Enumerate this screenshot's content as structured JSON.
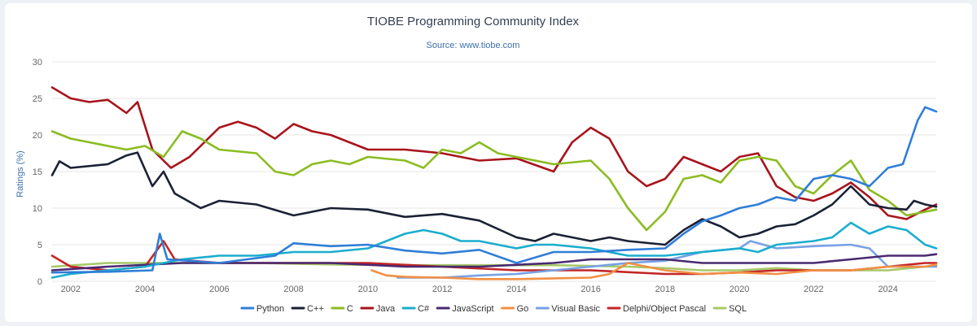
{
  "chart_data": {
    "type": "line",
    "title": "TIOBE Programming Community Index",
    "subtitle": "Source: www.tiobe.com",
    "xlabel": "",
    "ylabel": "Ratings (%)",
    "xlim": [
      2001.5,
      2025.3
    ],
    "ylim": [
      0,
      30
    ],
    "x_ticks": [
      "2002",
      "2004",
      "2006",
      "2008",
      "2010",
      "2012",
      "2014",
      "2016",
      "2018",
      "2020",
      "2022",
      "2024"
    ],
    "y_ticks": [
      "0",
      "5",
      "10",
      "15",
      "20",
      "25",
      "30"
    ],
    "grid": true,
    "legend_position": "bottom",
    "series": [
      {
        "name": "Python",
        "color": "#2f7ed8",
        "points": [
          [
            2001.5,
            1.2
          ],
          [
            2003,
            1.3
          ],
          [
            2004.2,
            1.5
          ],
          [
            2004.4,
            6.5
          ],
          [
            2004.6,
            3.0
          ],
          [
            2006,
            2.5
          ],
          [
            2007.5,
            3.5
          ],
          [
            2008,
            5.2
          ],
          [
            2009,
            4.8
          ],
          [
            2010,
            5.0
          ],
          [
            2011,
            4.2
          ],
          [
            2012,
            3.8
          ],
          [
            2013,
            4.3
          ],
          [
            2014,
            2.5
          ],
          [
            2015,
            4.0
          ],
          [
            2016,
            4.0
          ],
          [
            2017,
            4.3
          ],
          [
            2018,
            4.5
          ],
          [
            2018.5,
            6.5
          ],
          [
            2019,
            8.2
          ],
          [
            2019.5,
            9.0
          ],
          [
            2020,
            10.0
          ],
          [
            2020.5,
            10.5
          ],
          [
            2021,
            11.5
          ],
          [
            2021.5,
            11.0
          ],
          [
            2022,
            14.0
          ],
          [
            2022.5,
            14.5
          ],
          [
            2023,
            14.0
          ],
          [
            2023.5,
            13.0
          ],
          [
            2024,
            15.5
          ],
          [
            2024.4,
            16.0
          ],
          [
            2024.8,
            22.0
          ],
          [
            2025,
            23.8
          ],
          [
            2025.3,
            23.2
          ]
        ]
      },
      {
        "name": "C++",
        "color": "#1b2135",
        "points": [
          [
            2001.5,
            14.5
          ],
          [
            2001.7,
            16.4
          ],
          [
            2002,
            15.5
          ],
          [
            2003,
            16.0
          ],
          [
            2003.5,
            17.2
          ],
          [
            2003.8,
            17.6
          ],
          [
            2004.2,
            13.0
          ],
          [
            2004.5,
            15.0
          ],
          [
            2004.8,
            12.0
          ],
          [
            2005.5,
            10.0
          ],
          [
            2006,
            11.0
          ],
          [
            2007,
            10.5
          ],
          [
            2008,
            9.0
          ],
          [
            2009,
            10.0
          ],
          [
            2010,
            9.8
          ],
          [
            2011,
            8.8
          ],
          [
            2012,
            9.2
          ],
          [
            2013,
            8.3
          ],
          [
            2014,
            6.0
          ],
          [
            2014.5,
            5.5
          ],
          [
            2015,
            6.5
          ],
          [
            2016,
            5.5
          ],
          [
            2016.5,
            6.0
          ],
          [
            2017,
            5.5
          ],
          [
            2018,
            5.0
          ],
          [
            2018.5,
            7.0
          ],
          [
            2019,
            8.5
          ],
          [
            2019.5,
            7.5
          ],
          [
            2020,
            6.0
          ],
          [
            2020.5,
            6.5
          ],
          [
            2021,
            7.5
          ],
          [
            2021.5,
            7.8
          ],
          [
            2022,
            9.0
          ],
          [
            2022.5,
            10.5
          ],
          [
            2023,
            13.0
          ],
          [
            2023.5,
            10.5
          ],
          [
            2024,
            10.0
          ],
          [
            2024.5,
            9.8
          ],
          [
            2024.7,
            11.0
          ],
          [
            2025,
            10.5
          ],
          [
            2025.3,
            10.2
          ]
        ]
      },
      {
        "name": "C",
        "color": "#8bbc21",
        "points": [
          [
            2001.5,
            20.5
          ],
          [
            2002,
            19.5
          ],
          [
            2002.5,
            19.0
          ],
          [
            2003,
            18.5
          ],
          [
            2003.5,
            18.0
          ],
          [
            2004,
            18.5
          ],
          [
            2004.5,
            17.0
          ],
          [
            2005,
            20.5
          ],
          [
            2005.5,
            19.5
          ],
          [
            2006,
            18.0
          ],
          [
            2007,
            17.5
          ],
          [
            2007.5,
            15.0
          ],
          [
            2008,
            14.5
          ],
          [
            2008.5,
            16.0
          ],
          [
            2009,
            16.5
          ],
          [
            2009.5,
            16.0
          ],
          [
            2010,
            17.0
          ],
          [
            2011,
            16.5
          ],
          [
            2011.5,
            15.5
          ],
          [
            2012,
            18.0
          ],
          [
            2012.5,
            17.5
          ],
          [
            2013,
            19.0
          ],
          [
            2013.5,
            17.5
          ],
          [
            2014,
            17.0
          ],
          [
            2015,
            16.0
          ],
          [
            2016,
            16.5
          ],
          [
            2016.5,
            14.0
          ],
          [
            2017,
            10.0
          ],
          [
            2017.5,
            7.0
          ],
          [
            2018,
            9.5
          ],
          [
            2018.5,
            14.0
          ],
          [
            2019,
            14.5
          ],
          [
            2019.5,
            13.5
          ],
          [
            2020,
            16.5
          ],
          [
            2020.5,
            17.0
          ],
          [
            2021,
            16.5
          ],
          [
            2021.5,
            13.0
          ],
          [
            2022,
            12.0
          ],
          [
            2022.5,
            14.5
          ],
          [
            2023,
            16.5
          ],
          [
            2023.5,
            12.5
          ],
          [
            2024,
            11.0
          ],
          [
            2024.5,
            9.0
          ],
          [
            2025,
            9.5
          ],
          [
            2025.3,
            9.8
          ]
        ]
      },
      {
        "name": "Java",
        "color": "#a8141c",
        "points": [
          [
            2001.5,
            26.5
          ],
          [
            2002,
            25.0
          ],
          [
            2002.5,
            24.5
          ],
          [
            2003,
            24.8
          ],
          [
            2003.5,
            23.0
          ],
          [
            2003.8,
            24.5
          ],
          [
            2004.2,
            18.0
          ],
          [
            2004.7,
            15.5
          ],
          [
            2005.2,
            17.0
          ],
          [
            2006,
            21.0
          ],
          [
            2006.5,
            21.8
          ],
          [
            2007,
            21.0
          ],
          [
            2007.5,
            19.5
          ],
          [
            2008,
            21.5
          ],
          [
            2008.5,
            20.5
          ],
          [
            2009,
            20.0
          ],
          [
            2010,
            18.0
          ],
          [
            2011,
            18.0
          ],
          [
            2012,
            17.5
          ],
          [
            2013,
            16.5
          ],
          [
            2014,
            16.8
          ],
          [
            2015,
            15.0
          ],
          [
            2015.5,
            19.0
          ],
          [
            2016,
            21.0
          ],
          [
            2016.5,
            19.5
          ],
          [
            2017,
            15.0
          ],
          [
            2017.5,
            13.0
          ],
          [
            2018,
            14.0
          ],
          [
            2018.5,
            17.0
          ],
          [
            2019,
            16.0
          ],
          [
            2019.5,
            15.0
          ],
          [
            2020,
            17.0
          ],
          [
            2020.5,
            17.5
          ],
          [
            2021,
            13.0
          ],
          [
            2021.5,
            11.5
          ],
          [
            2022,
            11.0
          ],
          [
            2022.5,
            12.0
          ],
          [
            2023,
            13.5
          ],
          [
            2023.5,
            11.5
          ],
          [
            2024,
            9.0
          ],
          [
            2024.5,
            8.5
          ],
          [
            2025,
            9.8
          ],
          [
            2025.3,
            10.5
          ]
        ]
      },
      {
        "name": "C#",
        "color": "#1aadce",
        "points": [
          [
            2001.5,
            0.5
          ],
          [
            2002,
            1.0
          ],
          [
            2003,
            1.5
          ],
          [
            2004,
            2.0
          ],
          [
            2005,
            3.0
          ],
          [
            2006,
            3.5
          ],
          [
            2007,
            3.5
          ],
          [
            2008,
            4.0
          ],
          [
            2009,
            4.0
          ],
          [
            2010,
            4.5
          ],
          [
            2010.5,
            5.5
          ],
          [
            2011,
            6.5
          ],
          [
            2011.5,
            7.0
          ],
          [
            2012,
            6.5
          ],
          [
            2012.5,
            5.5
          ],
          [
            2013,
            5.5
          ],
          [
            2014,
            4.5
          ],
          [
            2014.5,
            5.0
          ],
          [
            2015,
            5.0
          ],
          [
            2016,
            4.5
          ],
          [
            2017,
            3.5
          ],
          [
            2018,
            3.5
          ],
          [
            2019,
            4.0
          ],
          [
            2020,
            4.5
          ],
          [
            2020.5,
            4.0
          ],
          [
            2021,
            5.0
          ],
          [
            2022,
            5.5
          ],
          [
            2022.5,
            6.0
          ],
          [
            2023,
            8.0
          ],
          [
            2023.5,
            6.5
          ],
          [
            2024,
            7.5
          ],
          [
            2024.5,
            7.0
          ],
          [
            2025,
            5.0
          ],
          [
            2025.3,
            4.5
          ]
        ]
      },
      {
        "name": "JavaScript",
        "color": "#492970",
        "points": [
          [
            2001.5,
            1.5
          ],
          [
            2003,
            2.0
          ],
          [
            2005,
            2.5
          ],
          [
            2007,
            2.5
          ],
          [
            2009,
            2.5
          ],
          [
            2011,
            2.0
          ],
          [
            2013,
            2.0
          ],
          [
            2015,
            2.5
          ],
          [
            2016,
            3.0
          ],
          [
            2017,
            3.0
          ],
          [
            2018,
            3.0
          ],
          [
            2019,
            2.5
          ],
          [
            2020,
            2.5
          ],
          [
            2021,
            2.5
          ],
          [
            2022,
            2.5
          ],
          [
            2023,
            3.0
          ],
          [
            2024,
            3.5
          ],
          [
            2025,
            3.5
          ],
          [
            2025.3,
            3.7
          ]
        ]
      },
      {
        "name": "Go",
        "color": "#f28f43",
        "points": [
          [
            2010.1,
            1.5
          ],
          [
            2010.5,
            0.8
          ],
          [
            2011,
            0.6
          ],
          [
            2012,
            0.5
          ],
          [
            2013,
            0.3
          ],
          [
            2014,
            0.3
          ],
          [
            2015,
            0.4
          ],
          [
            2016,
            0.5
          ],
          [
            2016.5,
            1.0
          ],
          [
            2017,
            2.5
          ],
          [
            2018,
            1.5
          ],
          [
            2019,
            1.0
          ],
          [
            2020,
            1.2
          ],
          [
            2021,
            1.0
          ],
          [
            2022,
            1.5
          ],
          [
            2023,
            1.5
          ],
          [
            2024,
            2.0
          ],
          [
            2025,
            2.0
          ],
          [
            2025.3,
            2.3
          ]
        ]
      },
      {
        "name": "Visual Basic",
        "color": "#77a1e5",
        "points": [
          [
            2010.8,
            0.5
          ],
          [
            2012,
            0.5
          ],
          [
            2013,
            0.8
          ],
          [
            2014,
            1.0
          ],
          [
            2015,
            1.5
          ],
          [
            2016,
            2.0
          ],
          [
            2017,
            2.5
          ],
          [
            2018,
            2.8
          ],
          [
            2019,
            4.0
          ],
          [
            2020,
            4.5
          ],
          [
            2020.3,
            5.5
          ],
          [
            2021,
            4.5
          ],
          [
            2022,
            4.8
          ],
          [
            2023,
            5.0
          ],
          [
            2023.5,
            4.5
          ],
          [
            2024,
            2.0
          ],
          [
            2025,
            2.0
          ],
          [
            2025.3,
            2.0
          ]
        ]
      },
      {
        "name": "Delphi/Object Pascal",
        "color": "#c42525",
        "points": [
          [
            2001.5,
            3.5
          ],
          [
            2002,
            2.0
          ],
          [
            2003,
            1.5
          ],
          [
            2004,
            2.0
          ],
          [
            2004.5,
            5.5
          ],
          [
            2004.8,
            3.0
          ],
          [
            2006,
            2.5
          ],
          [
            2008,
            2.5
          ],
          [
            2010,
            2.5
          ],
          [
            2012,
            2.0
          ],
          [
            2014,
            1.5
          ],
          [
            2016,
            1.5
          ],
          [
            2018,
            1.0
          ],
          [
            2019,
            1.0
          ],
          [
            2020,
            1.2
          ],
          [
            2021,
            1.5
          ],
          [
            2022,
            1.5
          ],
          [
            2023,
            1.5
          ],
          [
            2024,
            2.0
          ],
          [
            2025,
            2.5
          ],
          [
            2025.3,
            2.5
          ]
        ]
      },
      {
        "name": "SQL",
        "color": "#a6c96a",
        "points": [
          [
            2001.5,
            2.0
          ],
          [
            2003,
            2.5
          ],
          [
            2005,
            2.5
          ],
          [
            2007,
            2.5
          ],
          [
            2009,
            2.3
          ],
          [
            2011,
            2.2
          ],
          [
            2013,
            2.2
          ],
          [
            2015,
            2.2
          ],
          [
            2017,
            2.0
          ],
          [
            2018,
            1.8
          ],
          [
            2019,
            1.5
          ],
          [
            2020,
            1.5
          ],
          [
            2021,
            1.8
          ],
          [
            2022,
            1.5
          ],
          [
            2023,
            1.5
          ],
          [
            2024,
            1.5
          ],
          [
            2025,
            2.0
          ],
          [
            2025.3,
            2.2
          ]
        ]
      }
    ]
  }
}
